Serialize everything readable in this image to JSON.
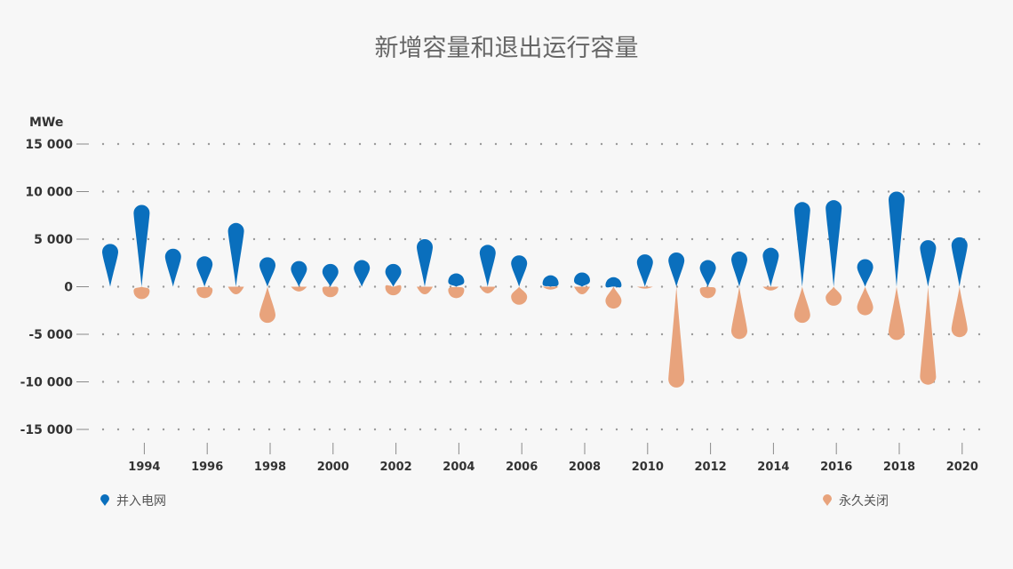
{
  "chart_data": {
    "type": "bar",
    "title": "新增容量和退出运行容量",
    "ylabel": "MWe",
    "ylim": [
      -15000,
      15000
    ],
    "yticks": [
      15000,
      10000,
      5000,
      0,
      -5000,
      -10000,
      -15000
    ],
    "ytick_labels": [
      "15 000",
      "10 000",
      "5 000",
      "0",
      "-5 000",
      "-10 000",
      "-15 000"
    ],
    "x": [
      1993,
      1994,
      1995,
      1996,
      1997,
      1998,
      1999,
      2000,
      2001,
      2002,
      2003,
      2004,
      2005,
      2006,
      2007,
      2008,
      2009,
      2010,
      2011,
      2012,
      2013,
      2014,
      2015,
      2016,
      2017,
      2018,
      2019,
      2020
    ],
    "xtick_labels": [
      "1994",
      "1996",
      "1998",
      "2000",
      "2002",
      "2004",
      "2006",
      "2008",
      "2010",
      "2012",
      "2014",
      "2016",
      "2018",
      "2020"
    ],
    "xtick_values": [
      1994,
      1996,
      1998,
      2000,
      2002,
      2004,
      2006,
      2008,
      2010,
      2012,
      2014,
      2016,
      2018,
      2020
    ],
    "grid": true,
    "legend_position": "bottom",
    "series": [
      {
        "name": "并入电网",
        "color": "#0a6fbd",
        "values": [
          4500,
          8600,
          4000,
          3200,
          6700,
          3100,
          2700,
          2400,
          2800,
          2400,
          5000,
          1400,
          4400,
          3300,
          1200,
          1500,
          1000,
          3400,
          3600,
          2800,
          3700,
          4100,
          8900,
          9100,
          2900,
          10000,
          4900,
          5200
        ]
      },
      {
        "name": "永久关闭",
        "color": "#e8a37c",
        "values": [
          0,
          -1300,
          0,
          -1200,
          -800,
          -3800,
          -500,
          -1100,
          0,
          -900,
          -800,
          -1200,
          -700,
          -1900,
          -300,
          -800,
          -2300,
          -200,
          -10600,
          -1200,
          -5500,
          -400,
          -3800,
          -2000,
          -3000,
          -5600,
          -10300,
          -5300
        ]
      }
    ]
  }
}
